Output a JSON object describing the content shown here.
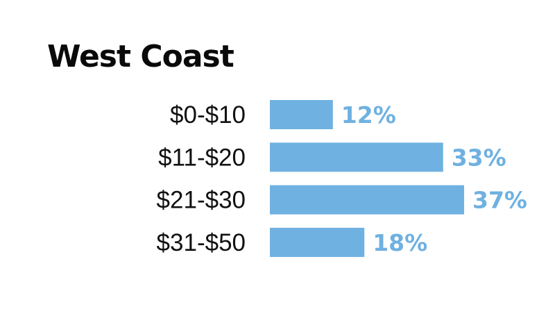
{
  "chart_data": {
    "type": "bar",
    "orientation": "horizontal",
    "title": "West Coast",
    "categories": [
      "$0-$10",
      "$11-$20",
      "$21-$30",
      "$31-$50"
    ],
    "values": [
      12,
      33,
      37,
      18
    ],
    "value_labels": [
      "12%",
      "33%",
      "37%",
      "18%"
    ],
    "unit": "%",
    "xlim": [
      0,
      37
    ],
    "grid": false,
    "legend": "none",
    "xlabel": "",
    "ylabel": ""
  },
  "colors": {
    "bar": "#6fb1e1",
    "value_label": "#6fb1e1",
    "title": "#0a0a0a",
    "category_label": "#111111"
  }
}
